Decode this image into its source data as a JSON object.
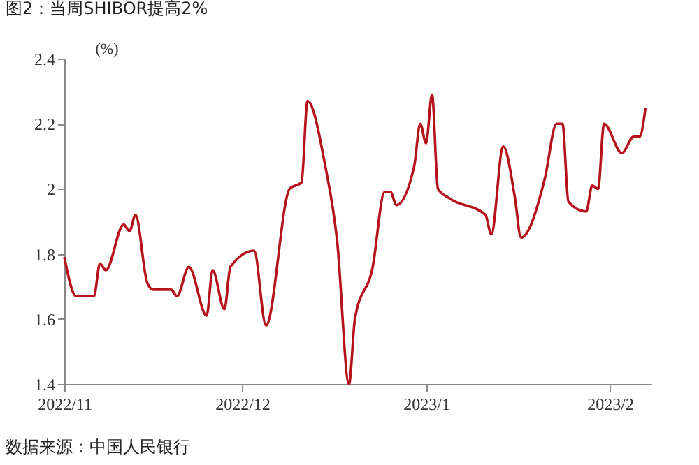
{
  "chart_data": {
    "type": "line",
    "title": "图2：当周SHIBOR提高2%",
    "ylabel": "(%)",
    "annotations": [
      "数据来源：中国人民银行"
    ],
    "x": [
      "2022-11-01",
      "2022-11-03",
      "2022-11-06",
      "2022-11-07",
      "2022-11-08",
      "2022-11-11",
      "2022-11-12",
      "2022-11-13",
      "2022-11-15",
      "2022-11-16",
      "2022-11-19",
      "2022-11-20",
      "2022-11-22",
      "2022-11-25",
      "2022-11-26",
      "2022-11-28",
      "2022-11-29",
      "2022-12-03",
      "2022-12-05",
      "2022-12-09",
      "2022-12-11",
      "2022-12-12",
      "2022-12-15",
      "2022-12-17",
      "2022-12-19",
      "2022-12-20",
      "2022-12-23",
      "2022-12-25",
      "2022-12-26",
      "2022-12-27",
      "2022-12-30",
      "2022-12-31",
      "2023-01-01",
      "2023-01-02",
      "2023-01-03",
      "2023-01-05",
      "2023-01-11",
      "2023-01-12",
      "2023-01-14",
      "2023-01-16",
      "2023-01-17",
      "2023-01-21",
      "2023-01-23",
      "2023-01-24",
      "2023-01-25",
      "2023-01-28",
      "2023-01-29",
      "2023-01-30",
      "2023-01-31",
      "2023-02-03",
      "2023-02-05",
      "2023-02-06",
      "2023-02-07"
    ],
    "series": [
      {
        "color": "#b5121b",
        "values": [
          1.79,
          1.67,
          1.67,
          1.77,
          1.75,
          1.89,
          1.87,
          1.92,
          1.71,
          1.69,
          1.69,
          1.67,
          1.76,
          1.61,
          1.75,
          1.63,
          1.76,
          1.81,
          1.58,
          2.0,
          2.02,
          2.27,
          2.07,
          1.84,
          1.4,
          1.6,
          1.76,
          1.99,
          1.99,
          1.95,
          2.07,
          2.2,
          2.14,
          2.29,
          2.0,
          1.97,
          1.92,
          1.86,
          2.13,
          1.97,
          1.85,
          2.03,
          2.2,
          2.2,
          1.96,
          1.93,
          2.01,
          2.0,
          2.2,
          2.11,
          2.16,
          2.16,
          2.25
        ]
      }
    ],
    "xlim": [
      "2022-11-01",
      "2023-02-08"
    ],
    "xticks": [
      {
        "value": "2022-11-01",
        "label": "2022/11"
      },
      {
        "value": "2022-12-01",
        "label": "2022/12"
      },
      {
        "value": "2023-01-01",
        "label": "2023/1"
      },
      {
        "value": "2023-02-01",
        "label": "2023/2"
      }
    ],
    "ylim": [
      1.4,
      2.4
    ],
    "yticks": [
      1.4,
      1.6,
      1.8,
      2,
      2.2,
      2.4
    ],
    "grid": false,
    "marker": "none",
    "line_style": "solid"
  }
}
